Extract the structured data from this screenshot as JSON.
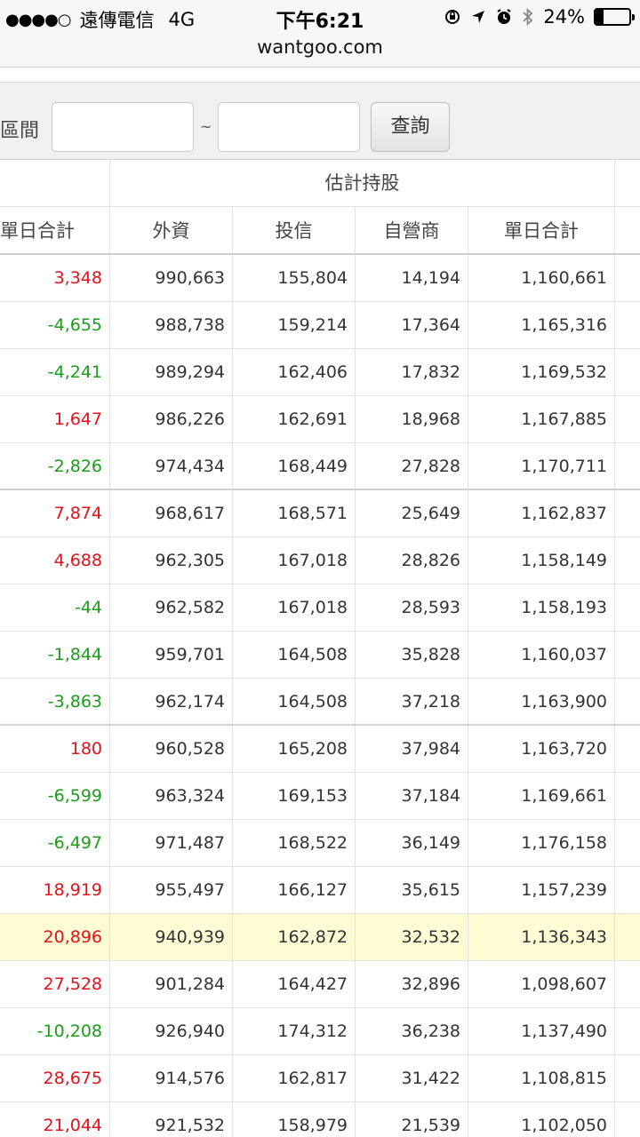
{
  "status_bar": {
    "signal": "●●●●○",
    "carrier": "遠傳電信",
    "network": "4G",
    "time": "下午6:21",
    "battery_text": "24%",
    "battery_level": 0.24,
    "icons": [
      "rotation-lock-icon",
      "location-icon",
      "alarm-icon",
      "bluetooth-icon",
      "battery-icon"
    ]
  },
  "browser": {
    "url": "wantgoo.com"
  },
  "filter": {
    "label": "區間",
    "separator": "~",
    "from_value": "",
    "to_value": "",
    "button_label": "查詢"
  },
  "table": {
    "group_header": "估計持股",
    "columns": [
      "單日合計",
      "外資",
      "投信",
      "自營商",
      "單日合計"
    ],
    "rows": [
      {
        "daily": "3,348",
        "trend": "up",
        "foreign": "990,663",
        "trust": "155,804",
        "dealer": "14,194",
        "total": "1,160,661"
      },
      {
        "daily": "-4,655",
        "trend": "down",
        "foreign": "988,738",
        "trust": "159,214",
        "dealer": "17,364",
        "total": "1,165,316"
      },
      {
        "daily": "-4,241",
        "trend": "down",
        "foreign": "989,294",
        "trust": "162,406",
        "dealer": "17,832",
        "total": "1,169,532"
      },
      {
        "daily": "1,647",
        "trend": "up",
        "foreign": "986,226",
        "trust": "162,691",
        "dealer": "18,968",
        "total": "1,167,885"
      },
      {
        "daily": "-2,826",
        "trend": "down",
        "foreign": "974,434",
        "trust": "168,449",
        "dealer": "27,828",
        "total": "1,170,711"
      },
      {
        "daily": "7,874",
        "trend": "up",
        "foreign": "968,617",
        "trust": "168,571",
        "dealer": "25,649",
        "total": "1,162,837"
      },
      {
        "daily": "4,688",
        "trend": "up",
        "foreign": "962,305",
        "trust": "167,018",
        "dealer": "28,826",
        "total": "1,158,149"
      },
      {
        "daily": "-44",
        "trend": "down",
        "foreign": "962,582",
        "trust": "167,018",
        "dealer": "28,593",
        "total": "1,158,193"
      },
      {
        "daily": "-1,844",
        "trend": "down",
        "foreign": "959,701",
        "trust": "164,508",
        "dealer": "35,828",
        "total": "1,160,037"
      },
      {
        "daily": "-3,863",
        "trend": "down",
        "foreign": "962,174",
        "trust": "164,508",
        "dealer": "37,218",
        "total": "1,163,900"
      },
      {
        "daily": "180",
        "trend": "up",
        "foreign": "960,528",
        "trust": "165,208",
        "dealer": "37,984",
        "total": "1,163,720"
      },
      {
        "daily": "-6,599",
        "trend": "down",
        "foreign": "963,324",
        "trust": "169,153",
        "dealer": "37,184",
        "total": "1,169,661"
      },
      {
        "daily": "-6,497",
        "trend": "down",
        "foreign": "971,487",
        "trust": "168,522",
        "dealer": "36,149",
        "total": "1,176,158"
      },
      {
        "daily": "18,919",
        "trend": "up",
        "foreign": "955,497",
        "trust": "166,127",
        "dealer": "35,615",
        "total": "1,157,239"
      },
      {
        "daily": "20,896",
        "trend": "up",
        "foreign": "940,939",
        "trust": "162,872",
        "dealer": "32,532",
        "total": "1,136,343",
        "highlighted": true
      },
      {
        "daily": "27,528",
        "trend": "up",
        "foreign": "901,284",
        "trust": "164,427",
        "dealer": "32,896",
        "total": "1,098,607"
      },
      {
        "daily": "-10,208",
        "trend": "down",
        "foreign": "926,940",
        "trust": "174,312",
        "dealer": "36,238",
        "total": "1,137,490"
      },
      {
        "daily": "28,675",
        "trend": "up",
        "foreign": "914,576",
        "trust": "162,817",
        "dealer": "31,422",
        "total": "1,108,815"
      },
      {
        "daily": "21,044",
        "trend": "up",
        "foreign": "921,532",
        "trust": "158,979",
        "dealer": "21,539",
        "total": "1,102,050"
      }
    ]
  },
  "colors": {
    "up": "#e4111b",
    "down": "#1a9e1a",
    "highlight_row": "#fdfcd4"
  }
}
